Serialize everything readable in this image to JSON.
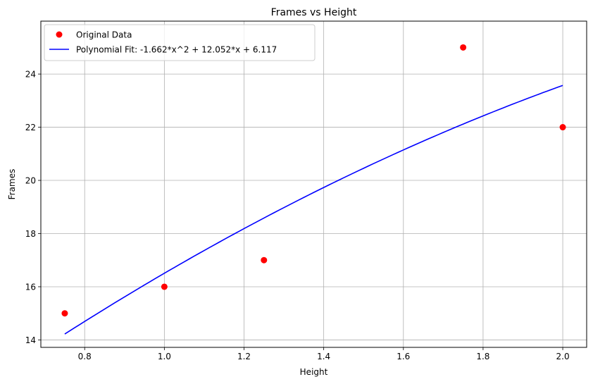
{
  "chart_data": {
    "type": "scatter",
    "title": "Frames vs Height",
    "xlabel": "Height",
    "ylabel": "Frames",
    "xlim": [
      0.69,
      2.06
    ],
    "ylim": [
      13.72,
      25.99
    ],
    "xticks": [
      0.8,
      1.0,
      1.2,
      1.4,
      1.6,
      1.8,
      2.0
    ],
    "xtick_labels": [
      "0.8",
      "1.0",
      "1.2",
      "1.4",
      "1.6",
      "1.8",
      "2.0"
    ],
    "yticks": [
      14,
      16,
      18,
      20,
      22,
      24
    ],
    "ytick_labels": [
      "14",
      "16",
      "18",
      "20",
      "22",
      "24"
    ],
    "grid": true,
    "legend_position": "top-left",
    "series": [
      {
        "name": "Original Data",
        "kind": "scatter",
        "color": "#ff0000",
        "x": [
          0.75,
          1.0,
          1.25,
          1.75,
          2.0
        ],
        "y": [
          15,
          16,
          17,
          25,
          22
        ]
      },
      {
        "name": "Polynomial Fit: -1.662*x^2 + 12.052*x + 6.117",
        "kind": "line",
        "color": "#0000ff",
        "coefficients": [
          -1.662,
          12.052,
          6.117
        ],
        "x_range": [
          0.75,
          2.0
        ]
      }
    ]
  }
}
